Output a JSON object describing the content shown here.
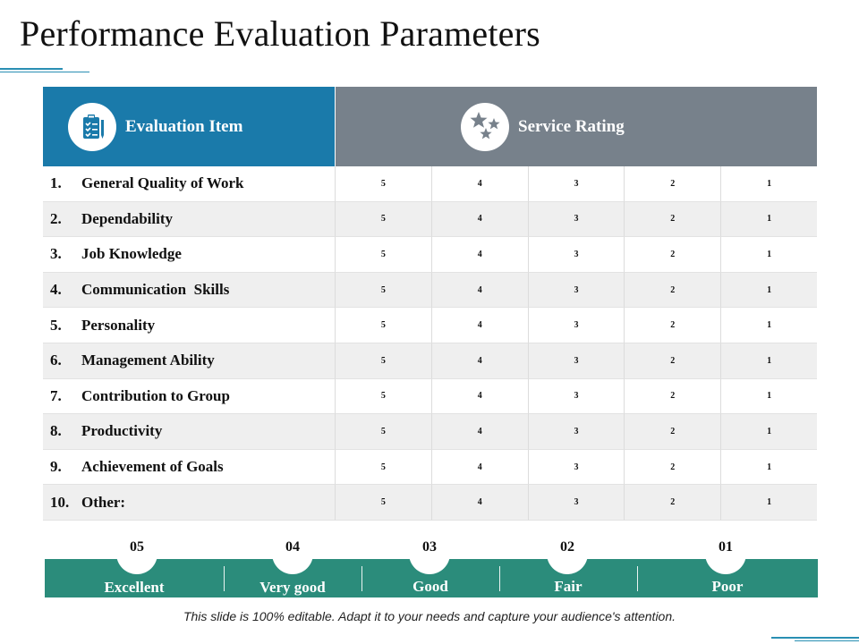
{
  "title": "Performance Evaluation Parameters",
  "header": {
    "item_label": "Evaluation Item",
    "item_icon": "clipboard-checklist-icon",
    "rating_label": "Service Rating",
    "rating_icon": "stars-icon",
    "item_color": "#1a7aaa",
    "rating_color": "#77818b"
  },
  "rows": [
    {
      "num": "1.",
      "label": "General Quality of Work",
      "ratings": [
        "5",
        "4",
        "3",
        "2",
        "1"
      ]
    },
    {
      "num": "2.",
      "label": "Dependability",
      "ratings": [
        "5",
        "4",
        "3",
        "2",
        "1"
      ]
    },
    {
      "num": "3.",
      "label": "Job Knowledge",
      "ratings": [
        "5",
        "4",
        "3",
        "2",
        "1"
      ]
    },
    {
      "num": "4.",
      "label": "Communication  Skills",
      "ratings": [
        "5",
        "4",
        "3",
        "2",
        "1"
      ]
    },
    {
      "num": "5.",
      "label": "Personality",
      "ratings": [
        "5",
        "4",
        "3",
        "2",
        "1"
      ]
    },
    {
      "num": "6.",
      "label": "Management Ability",
      "ratings": [
        "5",
        "4",
        "3",
        "2",
        "1"
      ]
    },
    {
      "num": "7.",
      "label": "Contribution to Group",
      "ratings": [
        "5",
        "4",
        "3",
        "2",
        "1"
      ]
    },
    {
      "num": "8.",
      "label": "Productivity",
      "ratings": [
        "5",
        "4",
        "3",
        "2",
        "1"
      ]
    },
    {
      "num": "9.",
      "label": "Achievement of Goals",
      "ratings": [
        "5",
        "4",
        "3",
        "2",
        "1"
      ]
    },
    {
      "num": "10.",
      "label": "Other:",
      "ratings": [
        "5",
        "4",
        "3",
        "2",
        "1"
      ]
    }
  ],
  "scale": {
    "color": "#2b8c7b",
    "items": [
      {
        "num": "05",
        "label": "Excellent"
      },
      {
        "num": "04",
        "label": "Very good"
      },
      {
        "num": "03",
        "label": "Good"
      },
      {
        "num": "02",
        "label": "Fair"
      },
      {
        "num": "01",
        "label": "Poor"
      }
    ]
  },
  "footer": "This slide is 100% editable. Adapt it to your needs and capture your audience's attention."
}
